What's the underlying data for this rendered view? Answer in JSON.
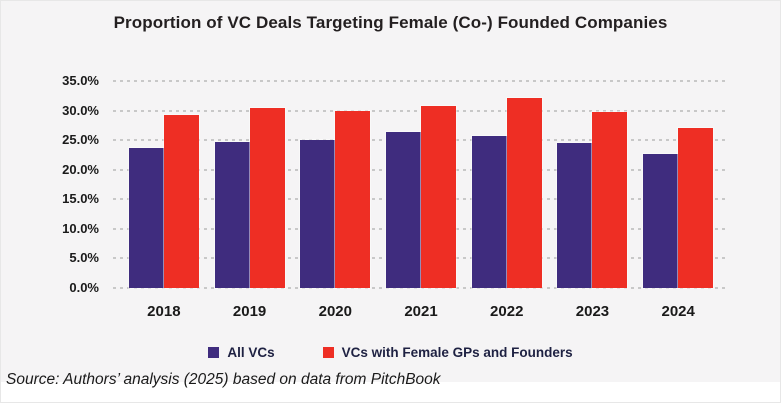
{
  "source_note": "Source: Authors’ analysis (2025) based on data from PitchBook",
  "colors": {
    "panel_bg": "#f5f4f5",
    "grid": "#c8c8c8",
    "all_vcs_bar": "#3F2C7E",
    "female_gps_bar": "#EE2E24"
  },
  "chart_data": {
    "type": "bar",
    "title": "Proportion of VC Deals Targeting Female (Co-) Founded Companies",
    "categories": [
      "2018",
      "2019",
      "2020",
      "2021",
      "2022",
      "2023",
      "2024"
    ],
    "series": [
      {
        "name": "All VCs",
        "color": "#3F2C7E",
        "values": [
          23.7,
          24.7,
          25.1,
          26.3,
          25.7,
          24.5,
          22.6
        ]
      },
      {
        "name": "VCs with Female GPs and Founders",
        "color": "#EE2E24",
        "values": [
          29.2,
          30.4,
          29.9,
          30.8,
          32.2,
          29.8,
          27.0
        ]
      }
    ],
    "yticks": [
      {
        "value": 0,
        "label": "0.0%"
      },
      {
        "value": 5,
        "label": "5.0%"
      },
      {
        "value": 10,
        "label": "10.0%"
      },
      {
        "value": 15,
        "label": "15.0%"
      },
      {
        "value": 20,
        "label": "20.0%"
      },
      {
        "value": 25,
        "label": "25.0%"
      },
      {
        "value": 30,
        "label": "30.0%"
      },
      {
        "value": 35,
        "label": "35.0%"
      }
    ],
    "ylim": [
      0,
      35
    ],
    "xlabel": "",
    "ylabel": "",
    "grid": "horizontal-dashed",
    "legend_position": "bottom"
  }
}
